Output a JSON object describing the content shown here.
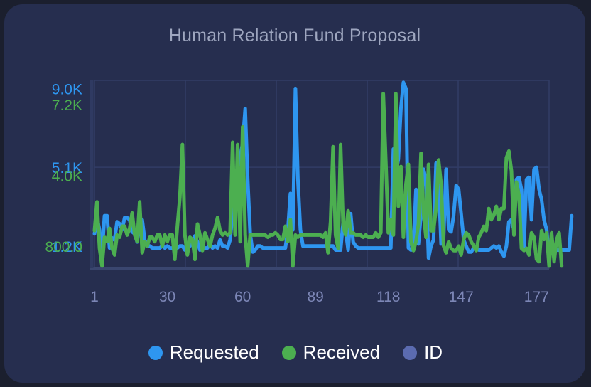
{
  "colors": {
    "background": "#1b1f2e",
    "card": "#262e4f",
    "grid": "#323d66",
    "requested": "#2e96f0",
    "received": "#4caf50",
    "id": "#5b6bb0",
    "axis_text": "#7c86b6"
  },
  "chart_data": {
    "type": "line",
    "title": "Human Relation Fund Proposal",
    "xlabel": "",
    "ylabel": "",
    "x_tick_labels": [
      "1",
      "30",
      "60",
      "89",
      "118",
      "147",
      "177"
    ],
    "x_range": [
      1,
      182
    ],
    "grid": true,
    "legend_position": "bottom",
    "y_axes": [
      {
        "series": "Requested",
        "side": "left",
        "tick_labels": [
          "9.0K",
          "5.1K",
          "1.2K"
        ],
        "ticks": [
          9000,
          5100,
          1200
        ],
        "range": [
          100,
          9400
        ],
        "color": "#2e96f0"
      },
      {
        "series": "Received",
        "side": "left",
        "tick_labels": [
          "7.2K",
          "4.0K",
          "800.0"
        ],
        "ticks": [
          7200,
          4000,
          800
        ],
        "range": [
          -200,
          8300
        ],
        "color": "#4caf50"
      }
    ],
    "series": [
      {
        "name": "Requested",
        "color": "#2e96f0",
        "values": [
          1800,
          2600,
          2000,
          800,
          2700,
          2700,
          1100,
          1600,
          1500,
          2400,
          2300,
          2000,
          2600,
          2600,
          2500,
          1900,
          1800,
          1400,
          2600,
          2500,
          1500,
          1200,
          1200,
          1100,
          1100,
          1100,
          1100,
          1200,
          1100,
          1200,
          1100,
          1100,
          1100,
          1100,
          1200,
          1200,
          1000,
          1100,
          1200,
          1400,
          1700,
          1400,
          1000,
          1100,
          1100,
          1100,
          1300,
          1100,
          1200,
          1100,
          1500,
          1200,
          1200,
          1100,
          1500,
          2800,
          4500,
          5000,
          5600,
          6300,
          8000,
          4500,
          1800,
          900,
          1000,
          1200,
          1200,
          1100,
          1100,
          1100,
          1100,
          1100,
          1100,
          1100,
          1100,
          1100,
          1100,
          2000,
          3800,
          2000,
          9000,
          4500,
          2000,
          1200,
          1200,
          1200,
          1200,
          1200,
          1200,
          1200,
          1200,
          1200,
          1200,
          1200,
          1200,
          1200,
          1000,
          1000,
          1000,
          2400,
          2000,
          1000,
          2800,
          1400,
          1200,
          1100,
          1100,
          1100,
          1100,
          1100,
          1100,
          1100,
          1100,
          1100,
          1100,
          1100,
          1100,
          1100,
          1100,
          6000,
          4800,
          5500,
          8000,
          9300,
          9000,
          1100,
          1000,
          1200,
          4000,
          1300,
          2800,
          5000,
          4500,
          600,
          1200,
          1500,
          5300,
          4500,
          1300,
          1600,
          5000,
          2000,
          1900,
          2700,
          4200,
          4000,
          2800,
          1500,
          1200,
          900,
          900,
          1100,
          1100,
          1000,
          1000,
          1000,
          1000,
          1000,
          1100,
          1200,
          1100,
          1200,
          900,
          700,
          1200,
          2400,
          2500,
          2000,
          4500,
          4600,
          4000,
          1200,
          4500,
          4600,
          2500,
          5000,
          5100,
          4000,
          3500,
          2500,
          2000,
          700,
          1000,
          1000,
          1000,
          1000,
          1000,
          1000,
          1000,
          1000,
          2700
        ]
      },
      {
        "name": "Received",
        "color": "#4caf50",
        "values": [
          1500,
          2800,
          700,
          -100,
          1200,
          1000,
          1600,
          700,
          400,
          1300,
          1200,
          1700,
          1700,
          1300,
          1600,
          2300,
          1300,
          1000,
          2800,
          500,
          1000,
          800,
          1200,
          1200,
          1000,
          1300,
          1300,
          800,
          1300,
          1000,
          1300,
          1300,
          200,
          1700,
          3000,
          5400,
          1300,
          400,
          1200,
          1100,
          200,
          1800,
          1300,
          600,
          1400,
          1100,
          800,
          1300,
          1600,
          2100,
          1500,
          1300,
          1400,
          1300,
          1400,
          5500,
          1300,
          5400,
          1000,
          6200,
          1300,
          -100,
          1300,
          1300,
          1300,
          1300,
          1300,
          1300,
          1300,
          1200,
          1300,
          1300,
          1400,
          1300,
          1100,
          1100,
          1700,
          1000,
          2000,
          -100,
          1300,
          1200,
          1300,
          1300,
          1300,
          1300,
          1300,
          1300,
          1300,
          1300,
          1300,
          1200,
          1400,
          500,
          1900,
          5300,
          1300,
          700,
          5400,
          1700,
          1300,
          2400,
          1400,
          1400,
          1300,
          1300,
          1300,
          1200,
          1300,
          1200,
          1200,
          1200,
          1400,
          1200,
          1400,
          7700,
          4600,
          1400,
          2000,
          1300,
          7700,
          2600,
          4400,
          1200,
          3600,
          4500,
          1000,
          600,
          1000,
          1800,
          5000,
          2300,
          1200,
          4500,
          1500,
          1500,
          2500,
          4700,
          3600,
          800,
          500,
          1000,
          700,
          600,
          600,
          800,
          400,
          1100,
          1400,
          1300,
          1000,
          800,
          600,
          1200,
          1400,
          1700,
          1500,
          2500,
          2000,
          2200,
          2600,
          2000,
          2500,
          2500,
          4800,
          5100,
          4200,
          1300,
          3700,
          3100,
          700,
          600,
          700,
          400,
          1400,
          1200,
          200,
          100,
          1500,
          1100,
          1400,
          -100,
          1400,
          100,
          1100,
          1400,
          -100
        ]
      }
    ]
  },
  "legend": {
    "items": [
      {
        "label": "Requested"
      },
      {
        "label": "Received"
      },
      {
        "label": "ID"
      }
    ]
  }
}
